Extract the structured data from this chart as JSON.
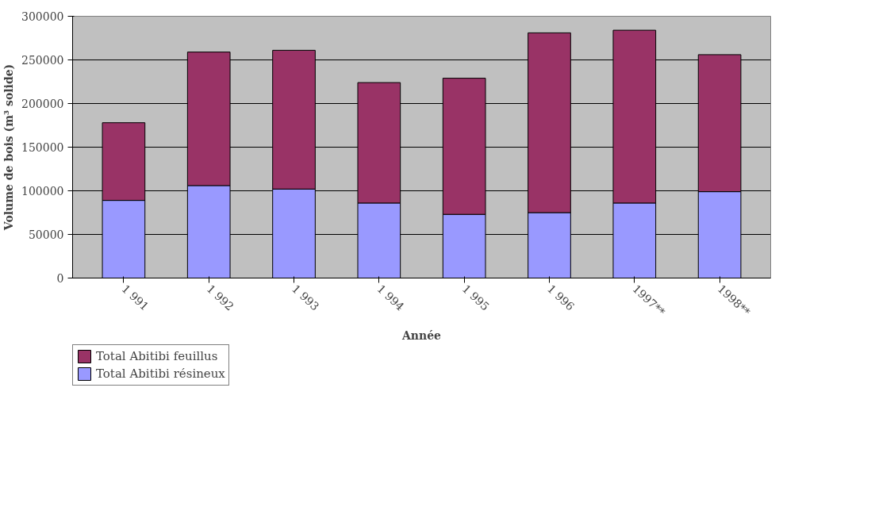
{
  "chart_data": {
    "type": "bar",
    "stacked": true,
    "xlabel": "Année",
    "ylabel": "Volume de bois (m³ solide)",
    "categories": [
      "1 991",
      "1 992",
      "1 993",
      "1 994",
      "1 995",
      "1 996",
      "1997**",
      "1998**"
    ],
    "series": [
      {
        "name": "Total Abitibi résineux",
        "color": "#9999ff",
        "values": [
          89000,
          106000,
          102000,
          86000,
          73000,
          75000,
          86000,
          99000
        ]
      },
      {
        "name": "Total Abitibi feuillus",
        "color": "#993366",
        "values": [
          89000,
          153000,
          159000,
          138000,
          156000,
          206000,
          198000,
          157000
        ]
      }
    ],
    "ylim": [
      0,
      300000
    ],
    "yticks": [
      0,
      50000,
      100000,
      150000,
      200000,
      250000,
      300000
    ],
    "grid": "y",
    "legend": "bottom"
  }
}
